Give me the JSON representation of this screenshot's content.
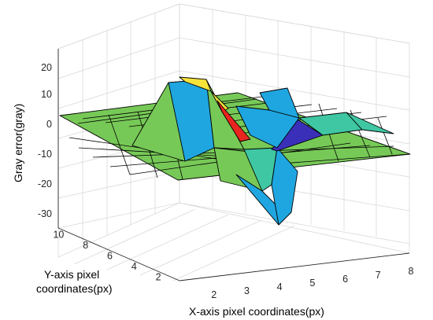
{
  "chart_data": {
    "type": "surface3d",
    "zlabel": "Gray error(gray)",
    "ylabel": [
      "Y-axis pixel",
      "coordinates(px)"
    ],
    "xlabel": "X-axis pixel coordinates(px)",
    "x_ticks": [
      2,
      3,
      4,
      5,
      6,
      7,
      8
    ],
    "y_ticks": [
      2,
      4,
      6,
      8,
      10
    ],
    "z_ticks": [
      20,
      10,
      0,
      -10,
      -20,
      -30
    ],
    "xlim": [
      1,
      8
    ],
    "ylim": [
      1,
      11
    ],
    "zlim": [
      -35,
      25
    ],
    "grid": true,
    "colors": {
      "flat": "#77c957",
      "mid": "#3fc7a3",
      "blue": "#1fa6e0",
      "navy": "#3a2fb8",
      "yellow": "#f5e23a",
      "red": "#e8251f"
    },
    "surface_points": [
      {
        "x": 1,
        "y": 1,
        "z": -4
      },
      {
        "x": 1,
        "y": 11,
        "z": -4
      },
      {
        "x": 8,
        "y": 11,
        "z": -4
      },
      {
        "x": 8,
        "y": 1,
        "z": -4
      },
      {
        "x": 3,
        "y": 6,
        "z": 11
      },
      {
        "x": 3.7,
        "y": 6,
        "z": 11
      },
      {
        "x": 4.6,
        "y": 4,
        "z": -31
      },
      {
        "x": 4.2,
        "y": 5,
        "z": -20
      },
      {
        "x": 5.5,
        "y": 6,
        "z": -11
      },
      {
        "x": 4.5,
        "y": 7,
        "z": 0
      }
    ]
  }
}
